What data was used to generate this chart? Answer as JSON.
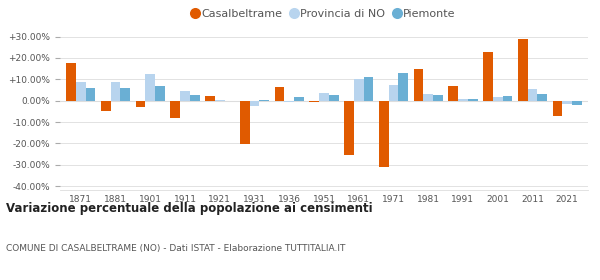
{
  "years": [
    1871,
    1881,
    1901,
    1911,
    1921,
    1931,
    1936,
    1951,
    1961,
    1971,
    1981,
    1991,
    2001,
    2011,
    2021
  ],
  "casalbeltrame": [
    17.5,
    -5.0,
    -3.0,
    -8.0,
    2.0,
    -20.5,
    6.5,
    -0.5,
    -25.5,
    -31.0,
    15.0,
    7.0,
    23.0,
    29.0,
    -7.0
  ],
  "provincia_no": [
    8.5,
    8.5,
    12.5,
    4.5,
    0.5,
    -2.5,
    -0.5,
    3.5,
    10.0,
    7.5,
    3.0,
    1.0,
    1.5,
    5.5,
    -1.5
  ],
  "piemonte": [
    6.0,
    6.0,
    7.0,
    2.5,
    0.0,
    0.5,
    1.5,
    2.5,
    11.0,
    13.0,
    2.5,
    1.0,
    2.0,
    3.0,
    -2.0
  ],
  "color_casalbeltrame": "#e05a00",
  "color_provincia": "#b8d4ee",
  "color_piemonte": "#6aafd4",
  "title": "Variazione percentuale della popolazione ai censimenti",
  "subtitle": "COMUNE DI CASALBELTRAME (NO) - Dati ISTAT - Elaborazione TUTTITALIA.IT",
  "ylim": [
    -42,
    34
  ],
  "yticks": [
    -40,
    -30,
    -20,
    -10,
    0,
    10,
    20,
    30
  ],
  "bar_width": 0.28,
  "background_color": "#ffffff",
  "grid_color": "#dddddd",
  "legend_labels": [
    "Casalbeltrame",
    "Provincia di NO",
    "Piemonte"
  ]
}
